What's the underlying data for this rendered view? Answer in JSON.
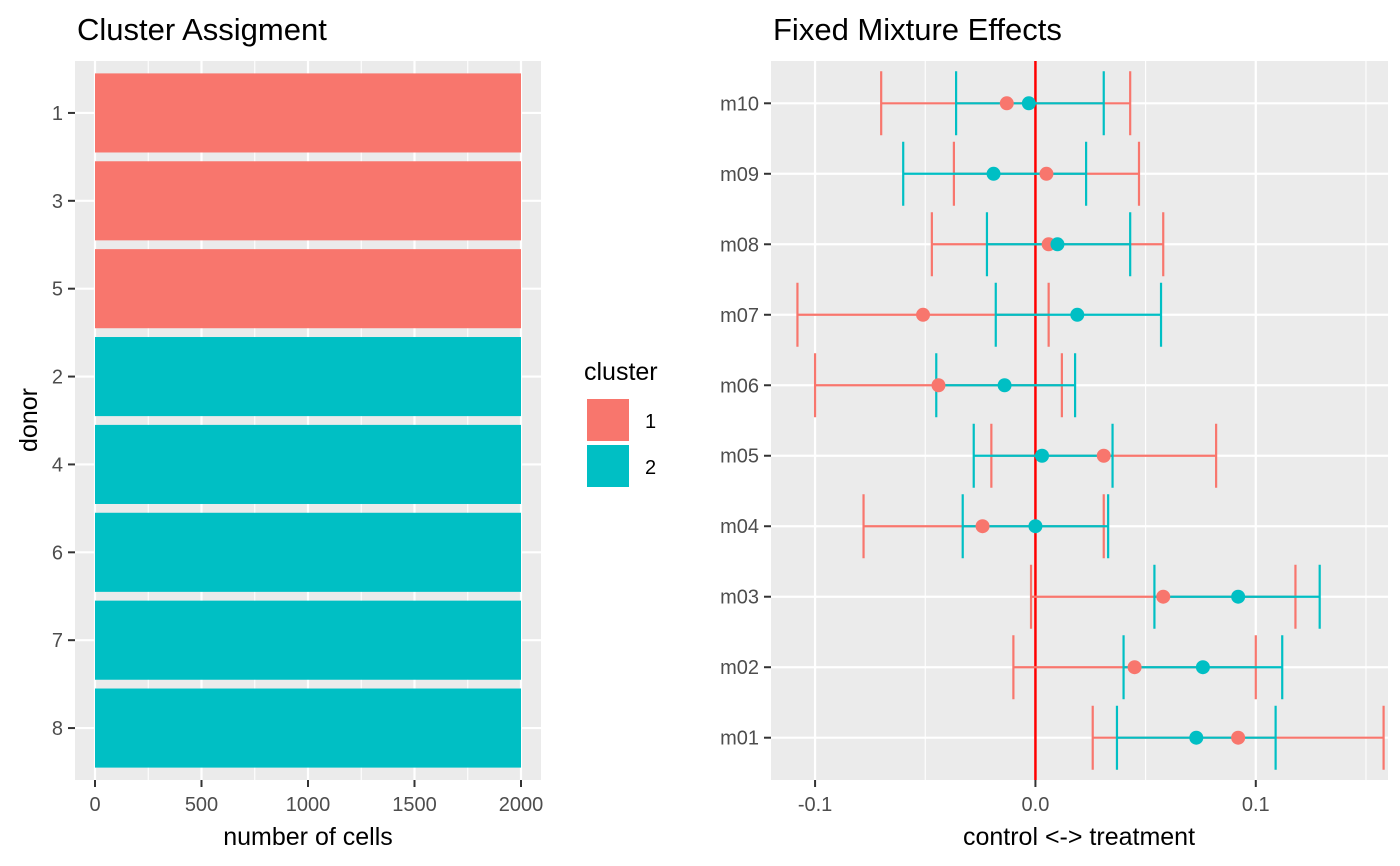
{
  "colors": {
    "panel_bg": "#ebebeb",
    "grid": "#ffffff",
    "cluster_1": "#f8766d",
    "cluster_2": "#00bfc4",
    "zero_line": "#ff0000",
    "axis_text": "#4d4d4d",
    "title_text": "#000000"
  },
  "chart_data": [
    {
      "type": "bar",
      "orientation": "horizontal",
      "title": "Cluster Assigment",
      "xlabel": "number of cells",
      "ylabel": "donor",
      "xlim": [
        0,
        2000
      ],
      "xticks": [
        "0",
        "500",
        "1000",
        "1500",
        "2000"
      ],
      "xtick_values": [
        0,
        500,
        1000,
        1500,
        2000
      ],
      "categories": [
        "1",
        "3",
        "5",
        "2",
        "4",
        "6",
        "7",
        "8"
      ],
      "values": [
        2000,
        2000,
        2000,
        2000,
        2000,
        2000,
        2000,
        2000
      ],
      "bar_cluster": [
        "1",
        "1",
        "1",
        "2",
        "2",
        "2",
        "2",
        "2"
      ],
      "grid": true,
      "legend": {
        "title": "cluster",
        "placement": "right",
        "entries": [
          {
            "label": "1",
            "color": "#f8766d"
          },
          {
            "label": "2",
            "color": "#00bfc4"
          }
        ]
      }
    },
    {
      "type": "errorbar",
      "orientation": "horizontal",
      "title": "Fixed Mixture Effects",
      "xlabel": "control <-> treatment",
      "ylabel": "",
      "xlim": [
        -0.12,
        0.16
      ],
      "xticks": [
        "-0.1",
        "0.0",
        "0.1"
      ],
      "xtick_values": [
        -0.1,
        0.0,
        0.1
      ],
      "reference_line_x": 0,
      "categories": [
        "m10",
        "m09",
        "m08",
        "m07",
        "m06",
        "m05",
        "m04",
        "m03",
        "m02",
        "m01"
      ],
      "grid": true,
      "series": [
        {
          "name": "1",
          "color": "#f8766d",
          "estimate": [
            -0.013,
            0.005,
            0.006,
            -0.051,
            -0.044,
            0.031,
            -0.024,
            0.058,
            0.045,
            0.092
          ],
          "lower": [
            -0.07,
            -0.037,
            -0.047,
            -0.108,
            -0.1,
            -0.02,
            -0.078,
            -0.002,
            -0.01,
            0.026
          ],
          "upper": [
            0.043,
            0.047,
            0.058,
            0.006,
            0.012,
            0.082,
            0.031,
            0.118,
            0.1,
            0.158
          ]
        },
        {
          "name": "2",
          "color": "#00bfc4",
          "estimate": [
            -0.003,
            -0.019,
            0.01,
            0.019,
            -0.014,
            0.003,
            0.0,
            0.092,
            0.076,
            0.073
          ],
          "lower": [
            -0.036,
            -0.06,
            -0.022,
            -0.018,
            -0.045,
            -0.028,
            -0.033,
            0.054,
            0.04,
            0.037
          ],
          "upper": [
            0.031,
            0.023,
            0.043,
            0.057,
            0.018,
            0.035,
            0.033,
            0.129,
            0.112,
            0.109
          ]
        }
      ]
    }
  ]
}
